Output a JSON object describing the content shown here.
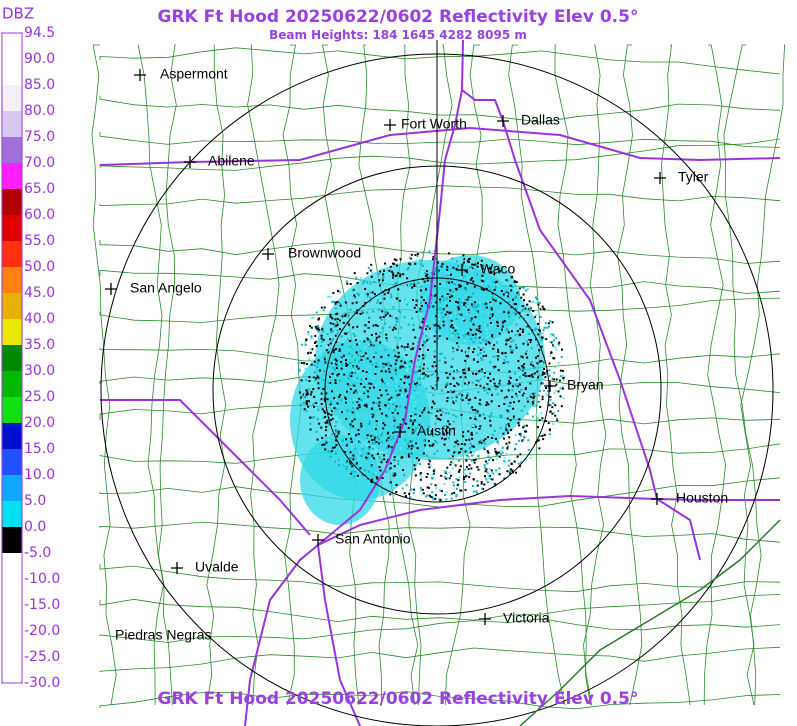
{
  "header": {
    "title": "GRK Ft Hood 20250622/0602 Reflectivity Elev 0.5°",
    "subtitle": "Beam Heights: 184 1645 4282 8095 m",
    "footer_title": "GRK Ft Hood 20250622/0602 Reflectivity Elev 0.5°"
  },
  "legend": {
    "unit": "DBZ",
    "labels": [
      "94.5",
      "90.0",
      "85.0",
      "80.0",
      "75.0",
      "70.0",
      "65.0",
      "60.0",
      "55.0",
      "50.0",
      "45.0",
      "40.0",
      "35.0",
      "30.0",
      "25.0",
      "20.0",
      "15.0",
      "10.0",
      "5.0",
      "0.0",
      "-5.0",
      "-10.0",
      "-15.0",
      "-20.0",
      "-25.0",
      "-30.0"
    ],
    "colors": [
      "#ffffff",
      "#ffffff",
      "#f4f0fa",
      "#d8c8f0",
      "#a070d8",
      "#ff20ff",
      "#b00000",
      "#e00000",
      "#ff3010",
      "#ff8010",
      "#e8b000",
      "#e8e800",
      "#008a00",
      "#00b800",
      "#10e010",
      "#0010d0",
      "#2050ff",
      "#10a8ff",
      "#00e0f0",
      "#000000",
      "#ffffff",
      "#ffffff",
      "#ffffff",
      "#ffffff",
      "#ffffff"
    ]
  },
  "map": {
    "places": [
      "Aspermont",
      "Abilene",
      "Fort Worth",
      "Dallas",
      "Tyler",
      "Brownwood",
      "Waco",
      "San Angelo",
      "Bryan",
      "Austin",
      "Houston",
      "San Antonio",
      "Uvalde",
      "Victoria",
      "Piedras Negras"
    ]
  }
}
